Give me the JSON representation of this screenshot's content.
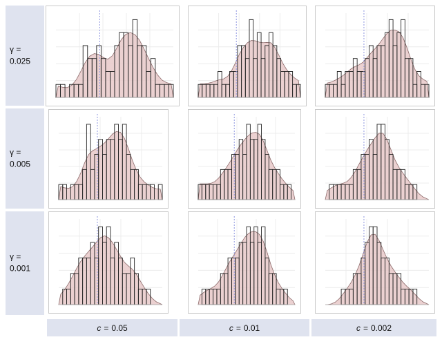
{
  "row_labels": [
    {
      "prefix": "γ =",
      "value": "0.025"
    },
    {
      "prefix": "γ =",
      "value": "0.005"
    },
    {
      "prefix": "γ =",
      "value": "0.001"
    }
  ],
  "col_labels": [
    {
      "symbol": "c",
      "eq": "=",
      "value": "0.05"
    },
    {
      "symbol": "c",
      "eq": "=",
      "value": "0.01"
    },
    {
      "symbol": "c",
      "eq": "=",
      "value": "0.002"
    }
  ],
  "colors": {
    "density_fill": "#e8c9c9",
    "density_line": "#8c6a6a",
    "bar_stroke": "#222222",
    "mean_line": "#8f97e0",
    "label_bg": "#dfe3ef"
  },
  "chart_data": [
    {
      "type": "bar",
      "row": "γ = 0.025",
      "col": "c = 0.05",
      "bins": 26,
      "values": [
        1,
        1,
        0,
        1,
        1,
        1,
        4,
        3,
        3,
        4,
        3,
        2,
        2,
        4,
        5,
        5,
        4,
        6,
        4,
        4,
        2,
        3,
        1,
        1,
        1,
        1
      ],
      "mean_bin": 9.2,
      "ylim": [
        0,
        6.5
      ]
    },
    {
      "type": "bar",
      "row": "γ = 0.025",
      "col": "c = 0.01",
      "bins": 26,
      "values": [
        1,
        1,
        1,
        1,
        1,
        2,
        1,
        1,
        2,
        2,
        4,
        4,
        3,
        6,
        3,
        5,
        3,
        4,
        5,
        4,
        3,
        2,
        2,
        2,
        1,
        1
      ],
      "mean_bin": 9.2,
      "ylim": [
        0,
        6.5
      ]
    },
    {
      "type": "bar",
      "row": "γ = 0.025",
      "col": "c = 0.002",
      "bins": 26,
      "values": [
        1,
        1,
        1,
        2,
        1,
        2,
        2,
        3,
        2,
        2,
        3,
        4,
        3,
        4,
        4,
        5,
        6,
        4,
        5,
        6,
        3,
        3,
        1,
        2,
        1,
        1
      ],
      "mean_bin": 9.2,
      "ylim": [
        0,
        6.5
      ]
    },
    {
      "type": "bar",
      "row": "γ = 0.005",
      "col": "c = 0.05",
      "bins": 26,
      "values": [
        1,
        1,
        0,
        1,
        1,
        1,
        2,
        5,
        2,
        3,
        4,
        3,
        4,
        4,
        5,
        4,
        5,
        3,
        2,
        2,
        1,
        1,
        1,
        1,
        0,
        1
      ],
      "mean_bin": 9.2,
      "ylim": [
        0,
        5.5
      ]
    },
    {
      "type": "bar",
      "row": "γ = 0.005",
      "col": "c = 0.01",
      "bins": 26,
      "values": [
        1,
        1,
        1,
        1,
        1,
        1,
        2,
        2,
        2,
        3,
        3,
        4,
        3,
        5,
        4,
        4,
        5,
        4,
        3,
        2,
        2,
        2,
        1,
        1,
        1,
        0
      ],
      "mean_bin": 9.2,
      "ylim": [
        0,
        5.5
      ]
    },
    {
      "type": "bar",
      "row": "γ = 0.005",
      "col": "c = 0.002",
      "bins": 26,
      "values": [
        0,
        1,
        1,
        1,
        1,
        1,
        1,
        2,
        2,
        3,
        3,
        4,
        3,
        5,
        5,
        4,
        3,
        2,
        2,
        2,
        1,
        1,
        1,
        0,
        0,
        0
      ],
      "mean_bin": 9.2,
      "ylim": [
        0,
        5.5
      ]
    },
    {
      "type": "bar",
      "row": "γ = 0.001",
      "col": "c = 0.05",
      "bins": 26,
      "values": [
        0,
        1,
        1,
        2,
        2,
        3,
        3,
        3,
        4,
        3,
        5,
        4,
        5,
        3,
        4,
        3,
        2,
        2,
        3,
        2,
        1,
        1,
        1,
        0,
        0,
        0
      ],
      "mean_bin": 9.2,
      "ylim": [
        0,
        5.5
      ]
    },
    {
      "type": "bar",
      "row": "γ = 0.001",
      "col": "c = 0.01",
      "bins": 26,
      "values": [
        0,
        1,
        1,
        1,
        1,
        1,
        2,
        2,
        3,
        3,
        3,
        4,
        4,
        5,
        4,
        5,
        4,
        5,
        3,
        2,
        2,
        1,
        1,
        1,
        0,
        0
      ],
      "mean_bin": 9.2,
      "ylim": [
        0,
        5.5
      ]
    },
    {
      "type": "bar",
      "row": "γ = 0.001",
      "col": "c = 0.002",
      "bins": 26,
      "values": [
        0,
        0,
        0,
        0,
        1,
        1,
        1,
        2,
        2,
        3,
        4,
        5,
        5,
        4,
        3,
        3,
        2,
        2,
        2,
        1,
        1,
        1,
        1,
        0,
        0,
        0
      ],
      "mean_bin": 9.2,
      "ylim": [
        0,
        5.5
      ]
    }
  ]
}
